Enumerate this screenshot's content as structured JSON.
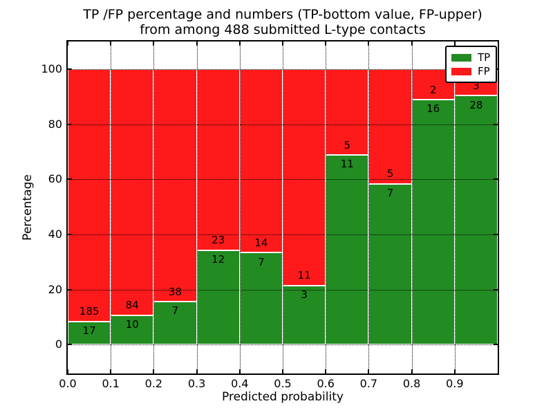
{
  "chart_data": {
    "type": "bar",
    "stacked": true,
    "title_lines": [
      "TP /FP percentage and numbers (TP-bottom value, FP-upper)",
      "from among 488 submitted L-type contacts"
    ],
    "xlabel": "Predicted probability",
    "ylabel": "Percentage",
    "categories": [
      "0.0-0.1",
      "0.1-0.2",
      "0.2-0.3",
      "0.3-0.4",
      "0.4-0.5",
      "0.5-0.6",
      "0.6-0.7",
      "0.7-0.8",
      "0.8-0.9",
      "0.9-1.0"
    ],
    "bin_edges": [
      0.0,
      0.1,
      0.2,
      0.3,
      0.4,
      0.5,
      0.6,
      0.7,
      0.8,
      0.9,
      1.0
    ],
    "series": [
      {
        "name": "TP",
        "color": "#228B22",
        "values": [
          17,
          10,
          7,
          12,
          7,
          3,
          11,
          7,
          16,
          28
        ]
      },
      {
        "name": "FP",
        "color": "#fe1a1a",
        "values": [
          185,
          84,
          38,
          23,
          14,
          11,
          5,
          5,
          2,
          3
        ]
      }
    ],
    "values_note": "counts labeled on bars; bar heights are percentage of bin total (TP bottom, FP upper, stacked to 100%)",
    "tp_percent": [
      8.4,
      10.6,
      15.6,
      34.3,
      33.3,
      21.4,
      68.8,
      58.3,
      88.9,
      90.3
    ],
    "total_contacts": 488,
    "x_ticks": [
      "0.0",
      "0.1",
      "0.2",
      "0.3",
      "0.4",
      "0.5",
      "0.6",
      "0.7",
      "0.8",
      "0.9"
    ],
    "y_ticks": [
      0,
      20,
      40,
      60,
      80,
      100
    ],
    "xlim": [
      0.0,
      1.0
    ],
    "ylim": [
      -10.5,
      110
    ],
    "grid": true,
    "bar_edge_color": "#ffffff",
    "legend": {
      "position": "upper right",
      "entries": [
        {
          "label": "TP",
          "color": "#228B22"
        },
        {
          "label": "FP",
          "color": "#fe1a1a"
        }
      ]
    }
  }
}
